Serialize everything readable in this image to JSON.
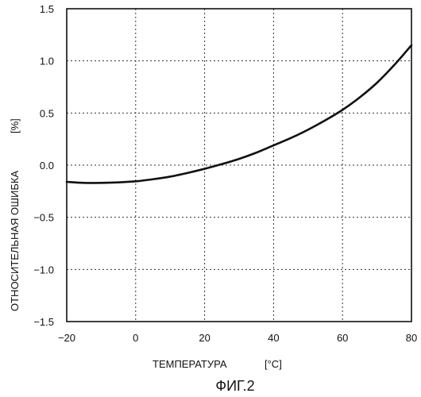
{
  "figure_caption": "ФИГ.2",
  "chart_data": {
    "type": "line",
    "title": "",
    "xlabel": "ТЕМПЕРАТУРА",
    "xunit": "[°C]",
    "ylabel": "ОТНОСИТЕЛЬНАЯ ОШИБКА",
    "yunit": "[%]",
    "xlim": [
      -20,
      80
    ],
    "ylim": [
      -1.5,
      1.5
    ],
    "grid": true,
    "xticks": [
      -20,
      0,
      20,
      40,
      60,
      80
    ],
    "xtick_labels": [
      "−20",
      "0",
      "20",
      "40",
      "60",
      "80"
    ],
    "yticks": [
      -1.5,
      -1.0,
      -0.5,
      0.0,
      0.5,
      1.0,
      1.5
    ],
    "ytick_labels": [
      "−1.5",
      "−1.0",
      "−0.5",
      "0.0",
      "0.5",
      "1.0",
      "1.5"
    ],
    "series": [
      {
        "color": "#111111",
        "x": [
          -20,
          -15,
          -10,
          -5,
          0,
          5,
          10,
          15,
          20,
          25,
          30,
          35,
          40,
          45,
          50,
          55,
          60,
          65,
          70,
          75,
          80
        ],
        "y": [
          -0.16,
          -0.17,
          -0.17,
          -0.165,
          -0.155,
          -0.135,
          -0.11,
          -0.075,
          -0.035,
          0.01,
          0.06,
          0.12,
          0.19,
          0.26,
          0.34,
          0.43,
          0.53,
          0.65,
          0.79,
          0.96,
          1.15
        ]
      }
    ]
  }
}
